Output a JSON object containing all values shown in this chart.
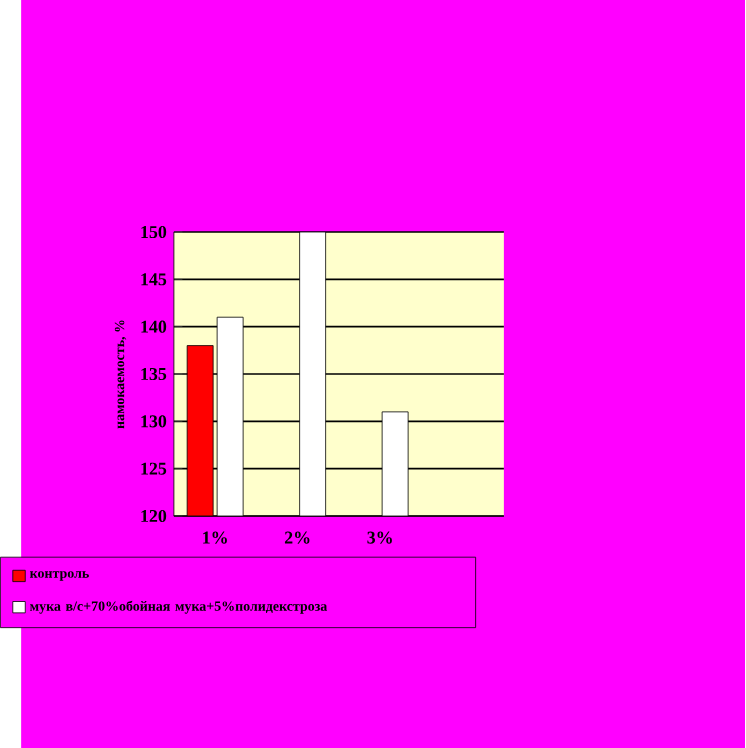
{
  "chart_data": {
    "type": "bar",
    "ylabel": "намокаемость, %",
    "categories": [
      "1%",
      "2%",
      "3%",
      null
    ],
    "series": [
      {
        "name": "контроль",
        "color": "#ff0000",
        "values": [
          138,
          null,
          null,
          null
        ]
      },
      {
        "name": "мука в/с+70%обойная мука+5%полидекстроза",
        "color": "#ffffff",
        "values": [
          141,
          150,
          131,
          null
        ]
      }
    ],
    "ylim": [
      120,
      150
    ],
    "yticks": [
      120,
      125,
      130,
      135,
      140,
      145,
      150
    ],
    "grid": "y",
    "legend": "bottom"
  }
}
